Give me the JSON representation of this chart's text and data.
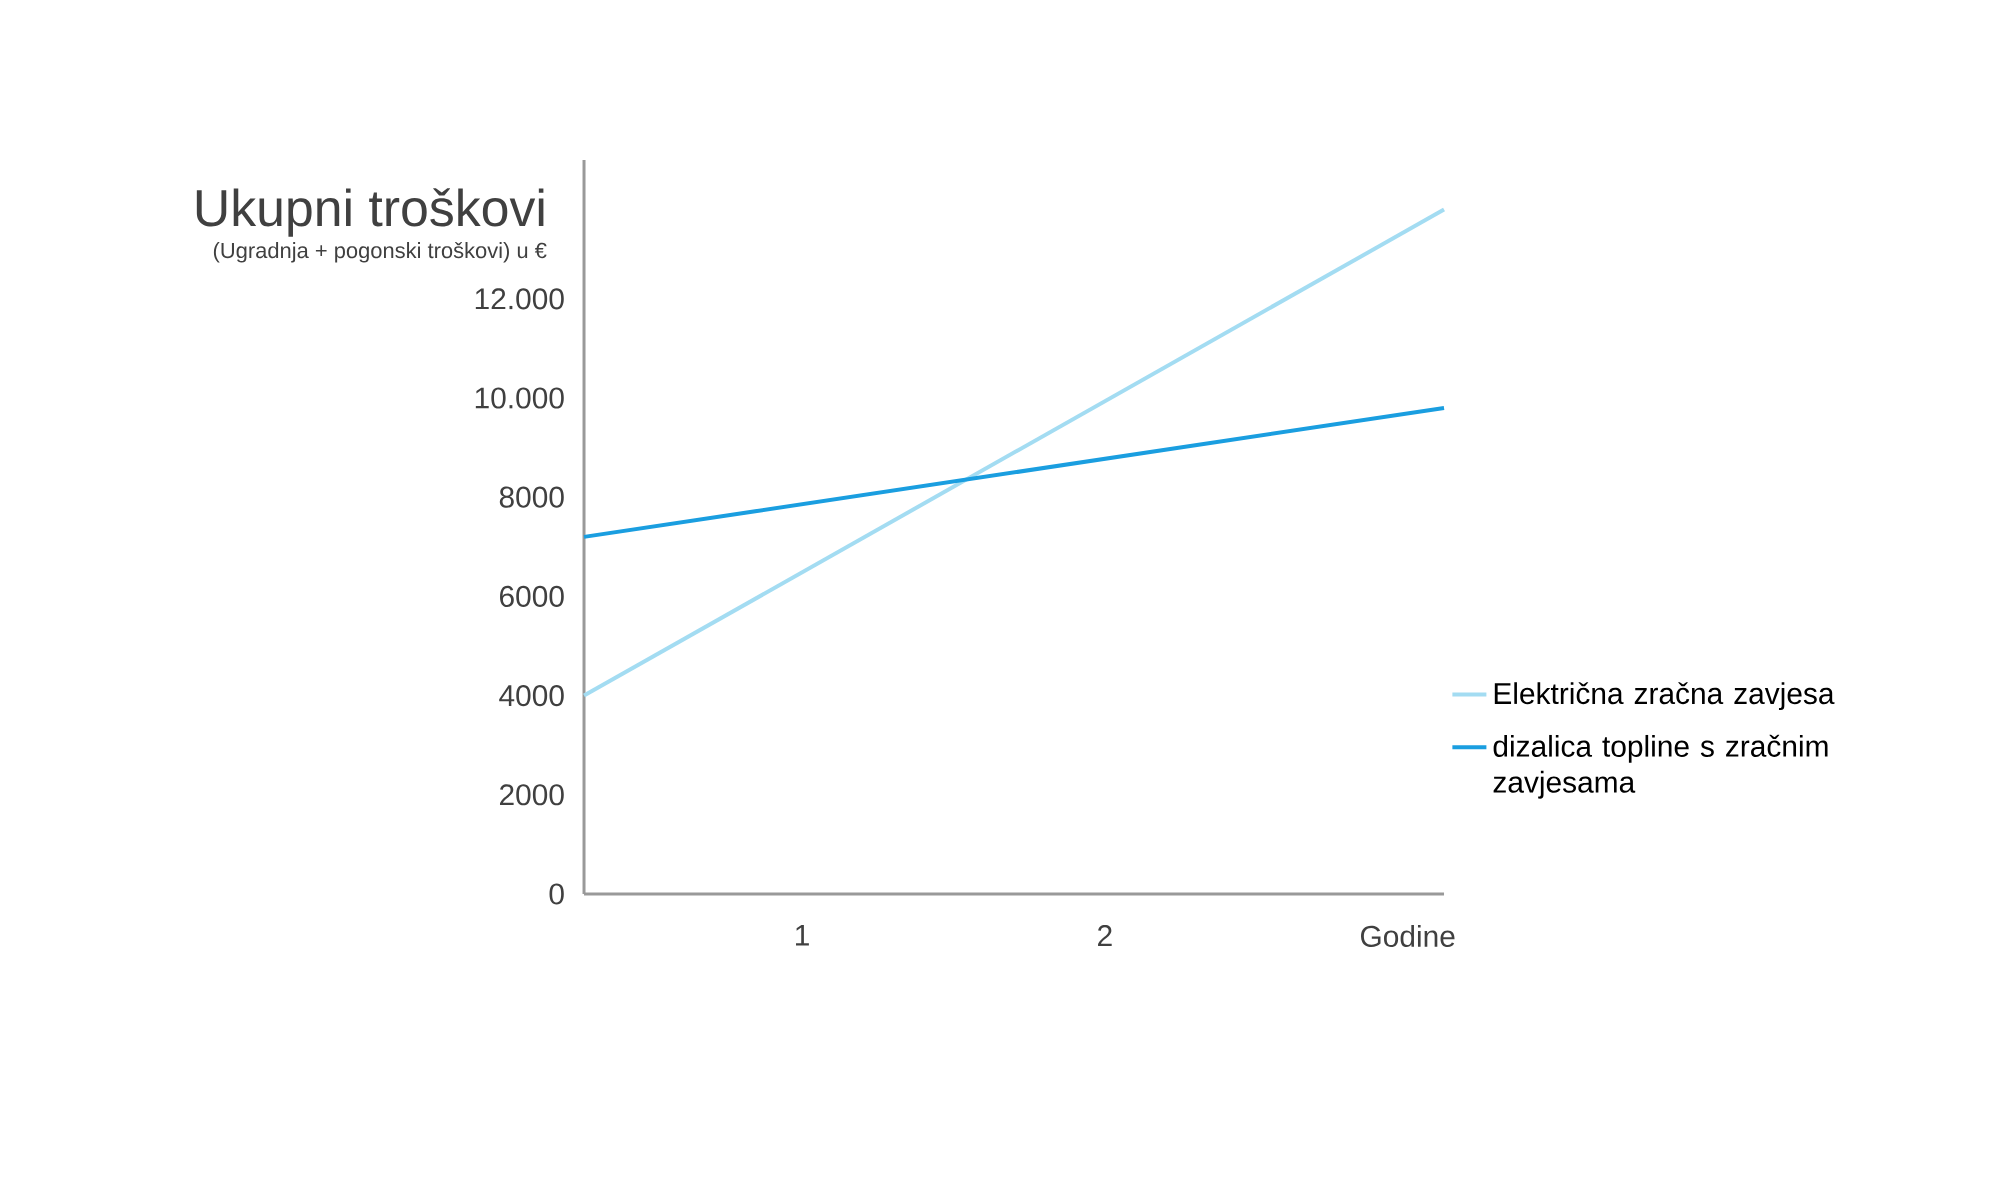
{
  "chart_data": {
    "type": "line",
    "ylabel": "Ukupni troškovi",
    "subtitle": "(Ugradnja + pogonski troškovi) u €",
    "x": [
      0.28,
      3.12
    ],
    "xlim": [
      0.28,
      3.12
    ],
    "xticks": [
      1,
      2,
      {
        "value": 3,
        "label": "Godine"
      }
    ],
    "ylim": [
      0,
      14800
    ],
    "yticks": [
      0,
      2000,
      4000,
      6000,
      8000,
      {
        "value": 10000,
        "label": "10.000"
      },
      {
        "value": 12000,
        "label": "12.000"
      }
    ],
    "series": [
      {
        "name": "Električna zračna zavjesa",
        "color": "#a3dcf2",
        "values": [
          4000,
          13800
        ]
      },
      {
        "name": "dizalica topline s zračnim zavjesama",
        "color": "#1a9ee0",
        "values": [
          7200,
          9800
        ]
      }
    ],
    "legend": "right",
    "grid": false,
    "marker": "none",
    "line_style": "solid"
  }
}
